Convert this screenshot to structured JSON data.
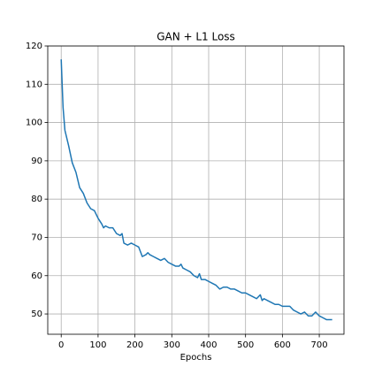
{
  "chart_data": {
    "type": "line",
    "title": "GAN + L1 Loss",
    "x_label": "Epochs",
    "x": [
      0,
      5,
      10,
      20,
      30,
      40,
      50,
      60,
      70,
      80,
      90,
      100,
      110,
      115,
      120,
      130,
      140,
      150,
      160,
      165,
      170,
      180,
      190,
      200,
      210,
      220,
      230,
      235,
      240,
      250,
      260,
      270,
      280,
      290,
      300,
      310,
      320,
      325,
      330,
      340,
      350,
      360,
      370,
      375,
      380,
      390,
      400,
      410,
      420,
      430,
      440,
      450,
      460,
      470,
      480,
      490,
      500,
      510,
      520,
      530,
      540,
      545,
      550,
      560,
      570,
      580,
      590,
      600,
      610,
      620,
      630,
      640,
      650,
      660,
      670,
      680,
      690,
      700,
      710,
      720,
      735
    ],
    "series": [
      {
        "name": "GAN + L1 Loss",
        "color": "#1f77b4",
        "values": [
          116.5,
          104,
          98,
          94,
          89.5,
          87,
          83,
          81.5,
          79,
          77.5,
          77,
          75,
          73.5,
          72.5,
          73,
          72.5,
          72.5,
          71,
          70.5,
          71,
          68.5,
          68,
          68.5,
          68,
          67.5,
          65,
          65.5,
          66,
          65.5,
          65,
          64.5,
          64,
          64.5,
          63.5,
          63,
          62.5,
          62.5,
          63,
          62,
          61.5,
          61,
          60,
          59.5,
          60.5,
          59,
          59,
          58.5,
          58,
          57.5,
          56.5,
          57,
          57,
          56.5,
          56.5,
          56,
          55.5,
          55.5,
          55,
          54.5,
          54,
          55,
          53.5,
          54,
          53.5,
          53,
          52.5,
          52.5,
          52,
          52,
          52,
          51,
          50.5,
          50,
          50.5,
          49.5,
          49.5,
          50.5,
          49.5,
          49,
          48.5,
          48.5
        ]
      }
    ],
    "xlim": [
      -36.5,
      767
    ],
    "ylim": [
      44.7,
      120
    ],
    "xticks": [
      0,
      100,
      200,
      300,
      400,
      500,
      600,
      700
    ],
    "yticks": [
      50,
      60,
      70,
      80,
      90,
      100,
      110,
      120
    ],
    "grid": true
  }
}
